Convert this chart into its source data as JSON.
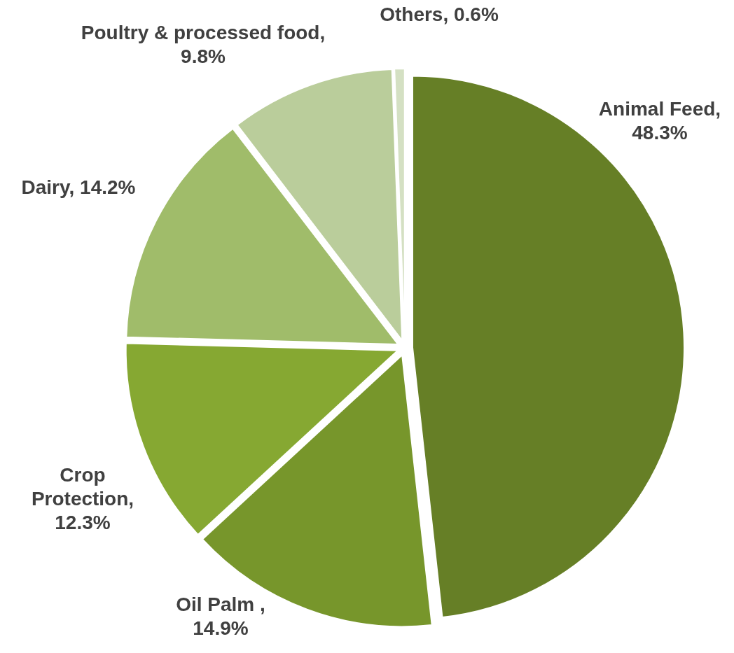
{
  "chart_data": {
    "type": "pie",
    "categories": [
      "Animal Feed",
      "Oil Palm",
      "Crop Protection",
      "Dairy",
      "Poultry & processed food",
      "Others"
    ],
    "values": [
      48.3,
      14.9,
      12.3,
      14.2,
      9.8,
      0.6
    ],
    "value_labels": [
      ", 48.3%",
      " , 14.9%",
      ", 12.3%",
      ", 14.2%",
      ", 9.8%",
      ", 0.6%"
    ],
    "colors": [
      "#667f26",
      "#77962b",
      "#86a832",
      "#a0bc6a",
      "#bacd9b",
      "#d4e0c3"
    ]
  }
}
